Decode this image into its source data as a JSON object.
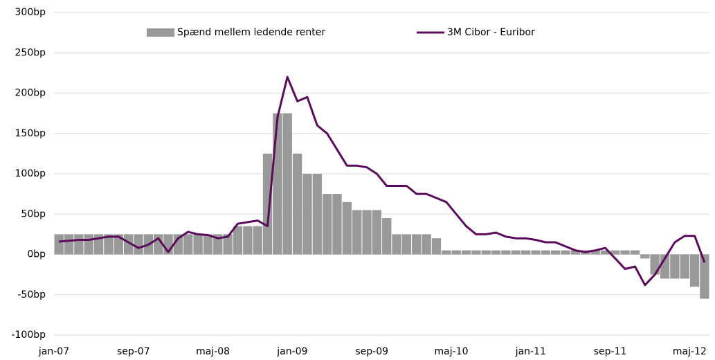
{
  "chart_data": {
    "type": "bar",
    "categories": [
      "jan-07",
      null,
      null,
      null,
      null,
      null,
      null,
      null,
      "sep-07",
      null,
      null,
      null,
      null,
      null,
      null,
      null,
      "maj-08",
      null,
      null,
      null,
      null,
      null,
      null,
      null,
      "jan-09",
      null,
      null,
      null,
      null,
      null,
      null,
      null,
      "sep-09",
      null,
      null,
      null,
      null,
      null,
      null,
      null,
      "maj-10",
      null,
      null,
      null,
      null,
      null,
      null,
      null,
      "jan-11",
      null,
      null,
      null,
      null,
      null,
      null,
      null,
      "sep-11",
      null,
      null,
      null,
      null,
      null,
      null,
      null,
      "maj-12",
      null
    ],
    "series": [
      {
        "name": "Spænd mellem ledende renter",
        "type": "bar",
        "color": "#999999",
        "values": [
          25,
          25,
          25,
          25,
          25,
          25,
          25,
          25,
          25,
          25,
          25,
          25,
          25,
          25,
          25,
          25,
          25,
          25,
          35,
          35,
          35,
          125,
          175,
          175,
          125,
          100,
          100,
          75,
          75,
          65,
          55,
          55,
          55,
          45,
          25,
          25,
          25,
          25,
          20,
          5,
          5,
          5,
          5,
          5,
          5,
          5,
          5,
          5,
          5,
          5,
          5,
          5,
          5,
          5,
          5,
          5,
          5,
          5,
          5,
          -5,
          -25,
          -30,
          -30,
          -30,
          -40,
          -55
        ]
      },
      {
        "name": "3M Cibor - Euribor",
        "type": "line",
        "color": "#5c0a5c",
        "values": [
          16,
          17,
          18,
          18,
          20,
          22,
          22,
          15,
          8,
          12,
          20,
          3,
          20,
          28,
          25,
          24,
          20,
          22,
          38,
          40,
          42,
          35,
          170,
          220,
          190,
          195,
          160,
          150,
          130,
          110,
          110,
          108,
          100,
          85,
          85,
          85,
          75,
          75,
          70,
          65,
          50,
          35,
          25,
          25,
          27,
          22,
          20,
          20,
          18,
          15,
          15,
          10,
          5,
          3,
          5,
          8,
          -5,
          -18,
          -15,
          -38,
          -25,
          -5,
          15,
          23,
          23,
          -10
        ]
      }
    ],
    "ylim": [
      -100,
      300
    ],
    "yticks": [
      {
        "value": -100,
        "label": "-100bp"
      },
      {
        "value": -50,
        "label": "-50bp"
      },
      {
        "value": 0,
        "label": "0bp"
      },
      {
        "value": 50,
        "label": "50bp"
      },
      {
        "value": 100,
        "label": "100bp"
      },
      {
        "value": 150,
        "label": "150bp"
      },
      {
        "value": 200,
        "label": "200bp"
      },
      {
        "value": 250,
        "label": "250bp"
      },
      {
        "value": 300,
        "label": "300bp"
      }
    ],
    "grid": true,
    "legend": "top"
  }
}
